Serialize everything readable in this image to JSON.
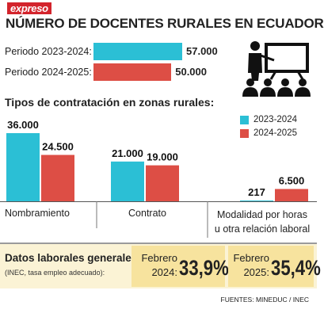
{
  "brand": "expreso",
  "title": "NÚMERO DE DOCENTES RURALES EN ECUADOR",
  "periods": [
    {
      "label": "Periodo 2023-2024:",
      "value": 57000,
      "display": "57.000",
      "color": "#2bbfd5"
    },
    {
      "label": "Periodo 2024-2025:",
      "value": 50000,
      "display": "50.000",
      "color": "#dd4e45"
    }
  ],
  "icon": "teacher-classroom-icon",
  "chart_data": {
    "type": "bar",
    "title": "Tipos de contratación en zonas rurales:",
    "categories": [
      "Nombramiento",
      "Contrato",
      "Modalidad por horas u otra relación laboral"
    ],
    "series": [
      {
        "name": "2023-2024",
        "values": [
          36000,
          21000,
          217
        ],
        "labels": [
          "36.000",
          "21.000",
          "217"
        ],
        "color": "#2bbfd5"
      },
      {
        "name": "2024-2025",
        "values": [
          24500,
          19000,
          6500
        ],
        "labels": [
          "24.500",
          "19.000",
          "6.500"
        ],
        "color": "#dd4e45"
      }
    ],
    "legend_position": "top-right",
    "grid": false,
    "ylim": [
      0,
      40000
    ]
  },
  "labor": {
    "title": "Datos laborales generales",
    "subtitle": "(INEC, tasa empleo adecuado):",
    "items": [
      {
        "label1": "Febrero",
        "label2": "2024:",
        "value": "33,9%"
      },
      {
        "label1": "Febrero",
        "label2": "2025:",
        "value": "35,4%"
      }
    ]
  },
  "sources": "FUENTES: MINEDUC / INEC"
}
